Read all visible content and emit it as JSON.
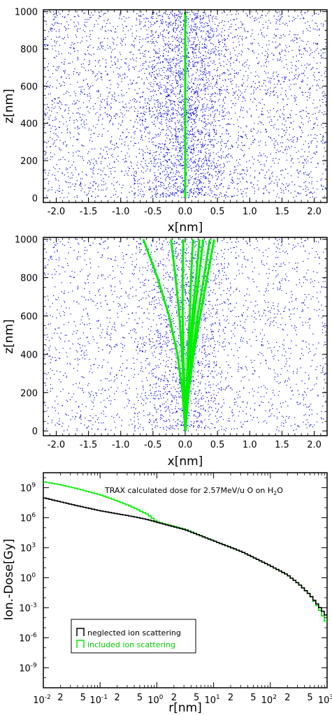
{
  "chart_data": [
    {
      "type": "scatter",
      "xlabel": "x[nm]",
      "ylabel": "z[nm]",
      "xlim": [
        -2.2,
        2.2
      ],
      "ylim": [
        -25,
        1010
      ],
      "xticks": [
        "-2.0",
        "-1.5",
        "-1.0",
        "-0.5",
        "0.0",
        "0.5",
        "1.0",
        "1.5",
        "2.0"
      ],
      "yticks": [
        "0",
        "200",
        "400",
        "600",
        "800",
        "1000"
      ],
      "colors": {
        "points": "#0000dd",
        "track": "#00ee00"
      },
      "background": "random ionisation points, denser near x = 0",
      "tracks": [
        {
          "x": [
            0.0,
            0.0
          ],
          "z": [
            0,
            1000
          ]
        }
      ]
    },
    {
      "type": "scatter",
      "xlabel": "x[nm]",
      "ylabel": "z[nm]",
      "xlim": [
        -2.2,
        2.2
      ],
      "ylim": [
        -25,
        1010
      ],
      "xticks": [
        "-2.0",
        "-1.5",
        "-1.0",
        "-0.5",
        "0.0",
        "0.5",
        "1.0",
        "1.5",
        "2.0"
      ],
      "yticks": [
        "0",
        "200",
        "400",
        "600",
        "800",
        "1000"
      ],
      "colors": {
        "points": "#0000dd",
        "track": "#00ee00"
      },
      "tracks": [
        {
          "x": [
            0.0,
            -0.04,
            -0.12,
            -0.25,
            -0.43,
            -0.65
          ],
          "z": [
            0,
            200,
            400,
            600,
            800,
            1000
          ]
        },
        {
          "x": [
            0.0,
            -0.02,
            -0.05,
            -0.09,
            -0.15,
            -0.22
          ],
          "z": [
            0,
            200,
            400,
            600,
            800,
            1000
          ]
        },
        {
          "x": [
            0.0,
            -0.01,
            -0.03,
            -0.04,
            -0.04,
            -0.03
          ],
          "z": [
            0,
            200,
            400,
            600,
            800,
            1000
          ]
        },
        {
          "x": [
            0.0,
            0.02,
            0.04,
            0.07,
            0.09,
            0.12
          ],
          "z": [
            0,
            200,
            400,
            600,
            800,
            1000
          ]
        },
        {
          "x": [
            0.0,
            0.02,
            0.06,
            0.11,
            0.17,
            0.22
          ],
          "z": [
            0,
            200,
            400,
            600,
            800,
            1000
          ]
        },
        {
          "x": [
            0.0,
            0.03,
            0.08,
            0.14,
            0.21,
            0.28
          ],
          "z": [
            0,
            200,
            400,
            600,
            800,
            1000
          ]
        },
        {
          "x": [
            0.0,
            0.05,
            0.11,
            0.19,
            0.29,
            0.38
          ],
          "z": [
            0,
            200,
            400,
            600,
            800,
            1000
          ]
        },
        {
          "x": [
            0.0,
            0.05,
            0.13,
            0.23,
            0.34,
            0.45
          ],
          "z": [
            0,
            200,
            400,
            600,
            800,
            1000
          ]
        }
      ]
    },
    {
      "type": "line",
      "title_text": "TRAX calculated dose for 2.57MeV/u O on H",
      "title_sub": "2",
      "title_tail": "O",
      "xlabel": "r[nm]",
      "ylabel": "Ion.-Dose[Gy]",
      "xscale": "log",
      "yscale": "log",
      "xlim": [
        0.01,
        1000
      ],
      "ylim_log10": [
        -11,
        10.5
      ],
      "xtick_decades": [
        {
          "exp": "-2",
          "v": -2
        },
        {
          "exp": "-1",
          "v": -1
        },
        {
          "exp": "0",
          "v": 0
        },
        {
          "exp": "1",
          "v": 1
        },
        {
          "exp": "2",
          "v": 2
        },
        {
          "exp": "3",
          "v": 3
        }
      ],
      "ytick_decades": [
        {
          "exp": "9",
          "v": 9
        },
        {
          "exp": "6",
          "v": 6
        },
        {
          "exp": "3",
          "v": 3
        },
        {
          "exp": "0",
          "v": 0
        },
        {
          "exp": "-3",
          "v": -3
        },
        {
          "exp": "-6",
          "v": -6
        },
        {
          "exp": "-9",
          "v": -9
        }
      ],
      "minor_labels": [
        "2",
        "5"
      ],
      "legend_position": "bottom-left",
      "series": [
        {
          "name": "neglected ion scattering",
          "color": "#000000",
          "log10_r": [
            -2,
            -1.7,
            -1.4,
            -1,
            -0.7,
            -0.4,
            -0.15,
            0,
            0.5,
            1,
            1.5,
            2,
            2.3,
            2.5,
            2.7,
            2.85,
            3
          ],
          "log10_dose": [
            8.0,
            7.6,
            7.2,
            6.7,
            6.4,
            6.1,
            5.8,
            5.55,
            4.8,
            3.7,
            2.6,
            1.2,
            0.3,
            -0.6,
            -1.7,
            -2.8,
            -3.9
          ]
        },
        {
          "name": "included ion scattering",
          "color": "#00ee00",
          "log10_r": [
            -2,
            -1.7,
            -1.4,
            -1,
            -0.7,
            -0.4,
            -0.15,
            0,
            0.5,
            1,
            1.5,
            2,
            2.3,
            2.5,
            2.7,
            2.85,
            3
          ],
          "log10_dose": [
            9.6,
            9.3,
            8.9,
            8.3,
            7.7,
            7.0,
            6.3,
            5.6,
            4.85,
            3.7,
            2.6,
            1.2,
            0.3,
            -0.6,
            -1.7,
            -3.0,
            -4.6
          ]
        }
      ]
    }
  ]
}
